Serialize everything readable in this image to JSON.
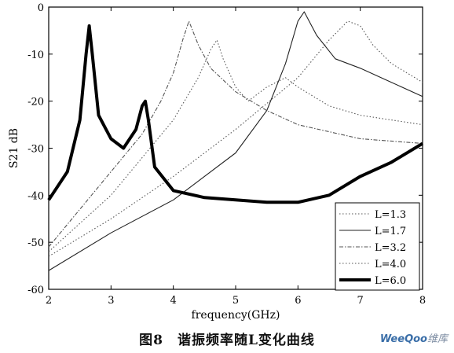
{
  "chart_data": {
    "type": "line",
    "xlabel": "frequency(GHz)",
    "ylabel": "S21 dB",
    "xlim": [
      2,
      8
    ],
    "ylim": [
      -60,
      0
    ],
    "xticks": [
      2,
      3,
      4,
      5,
      6,
      7,
      8
    ],
    "yticks": [
      0,
      -10,
      -20,
      -30,
      -40,
      -50,
      -60
    ],
    "legend_position": "bottom-right",
    "series": [
      {
        "name": "L=1.3",
        "style": "dotted",
        "x": [
          2,
          3,
          4,
          5,
          6,
          6.5,
          6.8,
          7,
          7.2,
          7.5,
          8
        ],
        "y": [
          -53,
          -45,
          -36,
          -26,
          -15,
          -7,
          -3,
          -4,
          -8,
          -12,
          -16
        ]
      },
      {
        "name": "L=1.7",
        "style": "solid",
        "x": [
          2,
          3,
          4,
          5,
          5.5,
          5.8,
          6,
          6.1,
          6.3,
          6.6,
          7,
          7.5,
          8
        ],
        "y": [
          -56,
          -48,
          -41,
          -31,
          -22,
          -12,
          -3,
          -1,
          -6,
          -11,
          -13,
          -16,
          -19
        ]
      },
      {
        "name": "L=3.2",
        "style": "dashdot",
        "x": [
          2,
          3,
          3.5,
          3.8,
          4,
          4.15,
          4.25,
          4.4,
          4.6,
          5,
          5.5,
          6,
          7,
          8
        ],
        "y": [
          -51,
          -35,
          -27,
          -20,
          -14,
          -7,
          -3,
          -8,
          -13,
          -18,
          -22,
          -25,
          -28,
          -29
        ]
      },
      {
        "name": "L=4.0",
        "style": "dotted",
        "x": [
          2,
          3,
          3.5,
          4,
          4.4,
          4.6,
          4.7,
          4.8,
          5,
          5.2,
          5.5,
          5.8,
          6,
          6.5,
          7,
          8
        ],
        "y": [
          -52,
          -40,
          -32,
          -24,
          -15,
          -9,
          -7,
          -11,
          -17,
          -20,
          -17,
          -15,
          -17,
          -21,
          -23,
          -25
        ]
      },
      {
        "name": "L=6.0",
        "style": "thick",
        "x": [
          2,
          2.3,
          2.5,
          2.6,
          2.65,
          2.7,
          2.8,
          3,
          3.2,
          3.4,
          3.5,
          3.55,
          3.6,
          3.7,
          4,
          4.5,
          5,
          5.5,
          6,
          6.5,
          7,
          7.5,
          8
        ],
        "y": [
          -41,
          -35,
          -24,
          -10,
          -4,
          -10,
          -23,
          -28,
          -30,
          -26,
          -21,
          -20,
          -24,
          -34,
          -39,
          -40.5,
          -41,
          -41.5,
          -41.5,
          -40,
          -36,
          -33,
          -29
        ]
      }
    ]
  },
  "caption": {
    "text": "图8　谐振频率随L变化曲线"
  },
  "watermark": {
    "brand": "WeeQoo",
    "suffix": "维库"
  }
}
